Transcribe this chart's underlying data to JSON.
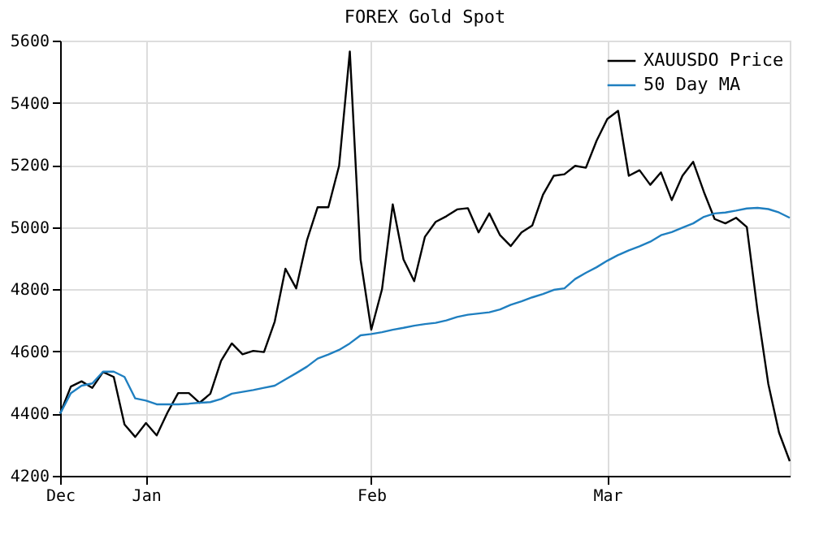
{
  "chart_data": {
    "type": "line",
    "title": "FOREX Gold Spot",
    "categories": [
      "Dec",
      null,
      null,
      null,
      null,
      null,
      null,
      null,
      "Jan",
      null,
      null,
      null,
      null,
      null,
      null,
      null,
      null,
      null,
      null,
      null,
      null,
      null,
      null,
      null,
      null,
      null,
      null,
      null,
      null,
      "Feb",
      null,
      null,
      null,
      null,
      null,
      null,
      null,
      null,
      null,
      null,
      null,
      null,
      null,
      null,
      null,
      null,
      null,
      null,
      null,
      null,
      null,
      "Mar",
      null,
      null,
      null,
      null,
      null,
      null,
      null,
      null,
      null,
      null,
      null,
      null,
      null,
      null,
      null,
      null,
      null
    ],
    "ylim": [
      4200,
      5600
    ],
    "yticks": [
      4200,
      4400,
      4600,
      4800,
      5000,
      5200,
      5400,
      5600
    ],
    "grid": true,
    "legend": "top right",
    "marker": "none",
    "line_style": "solid",
    "series": [
      {
        "name": "XAUUSDO Price",
        "color": "#000000",
        "values": [
          4400,
          4487,
          4504,
          4483,
          4534,
          4518,
          4365,
          4325,
          4370,
          4330,
          4403,
          4466,
          4466,
          4435,
          4464,
          4570,
          4626,
          4591,
          4602,
          4598,
          4696,
          4866,
          4803,
          4957,
          5064,
          5064,
          5197,
          5565,
          4896,
          4670,
          4800,
          5073,
          4896,
          4826,
          4969,
          5017,
          5035,
          5057,
          5061,
          4983,
          5044,
          4974,
          4939,
          4983,
          5005,
          5104,
          5165,
          5170,
          5197,
          5191,
          5278,
          5348,
          5374,
          5165,
          5183,
          5136,
          5176,
          5087,
          5165,
          5210,
          5113,
          5026,
          5012,
          5030,
          5000,
          4730,
          4496,
          4339,
          4247
        ]
      },
      {
        "name": "50 Day MA",
        "color": "#1f7fc0",
        "values": [
          4400,
          4466,
          4490,
          4497,
          4535,
          4535,
          4518,
          4449,
          4442,
          4430,
          4430,
          4430,
          4432,
          4435,
          4437,
          4447,
          4464,
          4470,
          4476,
          4483,
          4490,
          4510,
          4530,
          4551,
          4577,
          4590,
          4605,
          4626,
          4652,
          4656,
          4662,
          4670,
          4676,
          4683,
          4688,
          4692,
          4700,
          4711,
          4718,
          4722,
          4726,
          4735,
          4750,
          4761,
          4774,
          4785,
          4798,
          4803,
          4833,
          4853,
          4871,
          4892,
          4910,
          4925,
          4938,
          4953,
          4974,
          4984,
          4998,
          5012,
          5033,
          5044,
          5047,
          5053,
          5060,
          5062,
          5058,
          5047,
          5030
        ]
      }
    ]
  }
}
